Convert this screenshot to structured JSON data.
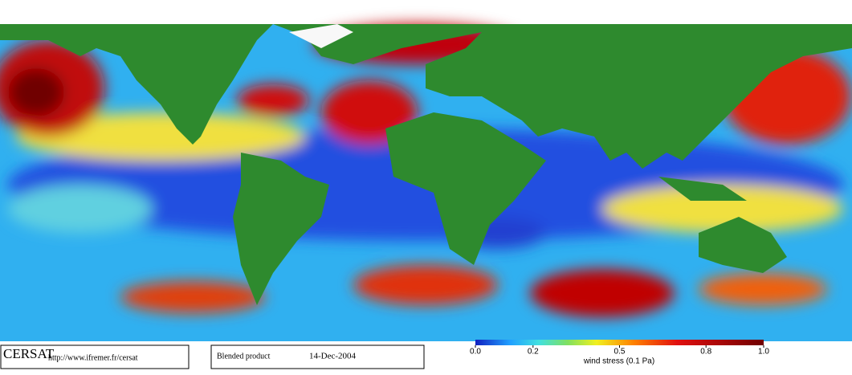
{
  "logo": "CERSAT",
  "url": "http://www.ifremer.fr/cersat",
  "product": "Blended product",
  "date": "14-Dec-2004",
  "colorbar": {
    "label": "wind stress (0.1 Pa)",
    "lim": [
      0,
      1
    ],
    "ticks": [
      {
        "value": 0,
        "label": "0.0"
      },
      0.2,
      0.5,
      0.8,
      {
        "value": 1,
        "label": "1.0"
      }
    ]
  }
}
